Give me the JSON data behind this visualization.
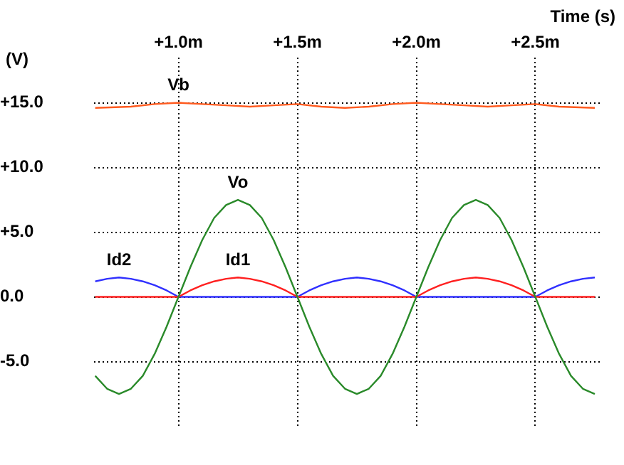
{
  "chart_data": {
    "type": "line",
    "xlabel": "Time (s)",
    "ylabel": "(V)",
    "x": [
      0.65,
      0.7,
      0.75,
      0.8,
      0.85,
      0.9,
      0.95,
      1.0,
      1.05,
      1.1,
      1.15,
      1.2,
      1.25,
      1.3,
      1.35,
      1.4,
      1.45,
      1.5,
      1.55,
      1.6,
      1.65,
      1.7,
      1.75,
      1.8,
      1.85,
      1.9,
      1.95,
      2.0,
      2.05,
      2.1,
      2.15,
      2.2,
      2.25,
      2.3,
      2.35,
      2.4,
      2.45,
      2.5,
      2.55,
      2.6,
      2.65,
      2.7,
      2.75
    ],
    "series": [
      {
        "name": "Vb",
        "color": "#ff5a1e",
        "x": [
          0.65,
          0.8,
          0.9,
          1.0,
          1.1,
          1.2,
          1.3,
          1.4,
          1.5,
          1.6,
          1.7,
          1.8,
          1.9,
          2.0,
          2.1,
          2.2,
          2.3,
          2.4,
          2.5,
          2.6,
          2.75
        ],
        "values": [
          14.6,
          14.7,
          14.9,
          15.0,
          14.9,
          14.8,
          14.7,
          14.8,
          14.9,
          14.7,
          14.6,
          14.7,
          14.9,
          15.0,
          14.9,
          14.8,
          14.7,
          14.8,
          14.9,
          14.7,
          14.6
        ]
      },
      {
        "name": "Vo",
        "color": "#2a8a2a",
        "values": [
          -6.1,
          -7.1,
          -7.5,
          -7.1,
          -6.1,
          -4.4,
          -2.3,
          0,
          2.3,
          4.4,
          6.1,
          7.1,
          7.5,
          7.1,
          6.1,
          4.4,
          2.3,
          0,
          -2.3,
          -4.4,
          -6.1,
          -7.1,
          -7.5,
          -7.1,
          -6.1,
          -4.4,
          -2.3,
          0,
          2.3,
          4.4,
          6.1,
          7.1,
          7.5,
          7.1,
          6.1,
          4.4,
          2.3,
          0,
          -2.3,
          -4.4,
          -6.1,
          -7.1,
          -7.5
        ]
      },
      {
        "name": "Id1",
        "color": "#ff2020",
        "values": [
          0,
          0,
          0,
          0,
          0,
          0,
          0,
          0,
          0.5,
          0.9,
          1.2,
          1.4,
          1.5,
          1.4,
          1.2,
          0.9,
          0.5,
          0,
          0,
          0,
          0,
          0,
          0,
          0,
          0,
          0,
          0,
          0,
          0.5,
          0.9,
          1.2,
          1.4,
          1.5,
          1.4,
          1.2,
          0.9,
          0.5,
          0,
          0,
          0,
          0,
          0,
          0
        ]
      },
      {
        "name": "Id2",
        "color": "#3030ff",
        "values": [
          1.2,
          1.4,
          1.5,
          1.4,
          1.2,
          0.9,
          0.5,
          0,
          0,
          0,
          0,
          0,
          0,
          0,
          0,
          0,
          0,
          0,
          0.5,
          0.9,
          1.2,
          1.4,
          1.5,
          1.4,
          1.2,
          0.9,
          0.5,
          0,
          0,
          0,
          0,
          0,
          0,
          0,
          0,
          0,
          0,
          0,
          0.5,
          0.9,
          1.2,
          1.4,
          1.5
        ]
      }
    ],
    "xlim": [
      0.645,
      2.777
    ],
    "ylim": [
      -10,
      18.5
    ],
    "xticks": [
      {
        "value": 1.0,
        "label": "+1.0m"
      },
      {
        "value": 1.5,
        "label": "+1.5m"
      },
      {
        "value": 2.0,
        "label": "+2.0m"
      },
      {
        "value": 2.5,
        "label": "+2.5m"
      }
    ],
    "yticks": [
      {
        "value": -5,
        "label": "-5.0"
      },
      {
        "value": 0,
        "label": "0.0"
      },
      {
        "value": 5,
        "label": "+5.0"
      },
      {
        "value": 10,
        "label": "+10.0"
      },
      {
        "value": 15,
        "label": "+15.0"
      }
    ],
    "grid": true,
    "legend": false,
    "marker": "none",
    "line_style": "solid"
  }
}
